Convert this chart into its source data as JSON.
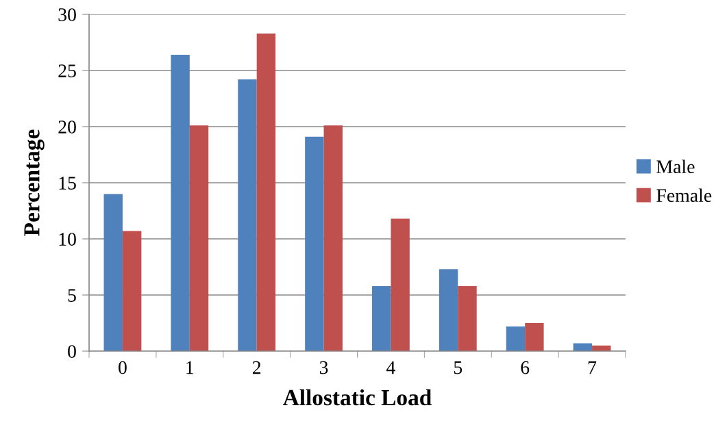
{
  "chart_data": {
    "type": "bar",
    "xlabel": "Allostatic Load",
    "ylabel": "Percentage",
    "categories": [
      "0",
      "1",
      "2",
      "3",
      "4",
      "5",
      "6",
      "7"
    ],
    "series": [
      {
        "name": "Male",
        "color": "#4f81bd",
        "values": [
          14.0,
          26.4,
          24.2,
          19.1,
          5.8,
          7.3,
          2.2,
          0.7
        ]
      },
      {
        "name": "Female",
        "color": "#c0504d",
        "values": [
          10.7,
          20.1,
          28.3,
          20.1,
          11.8,
          5.8,
          2.5,
          0.5
        ]
      }
    ],
    "ylim": [
      0,
      30
    ],
    "yticks": [
      0,
      5,
      10,
      15,
      20,
      25,
      30
    ],
    "grid": "y",
    "legend": "right"
  }
}
